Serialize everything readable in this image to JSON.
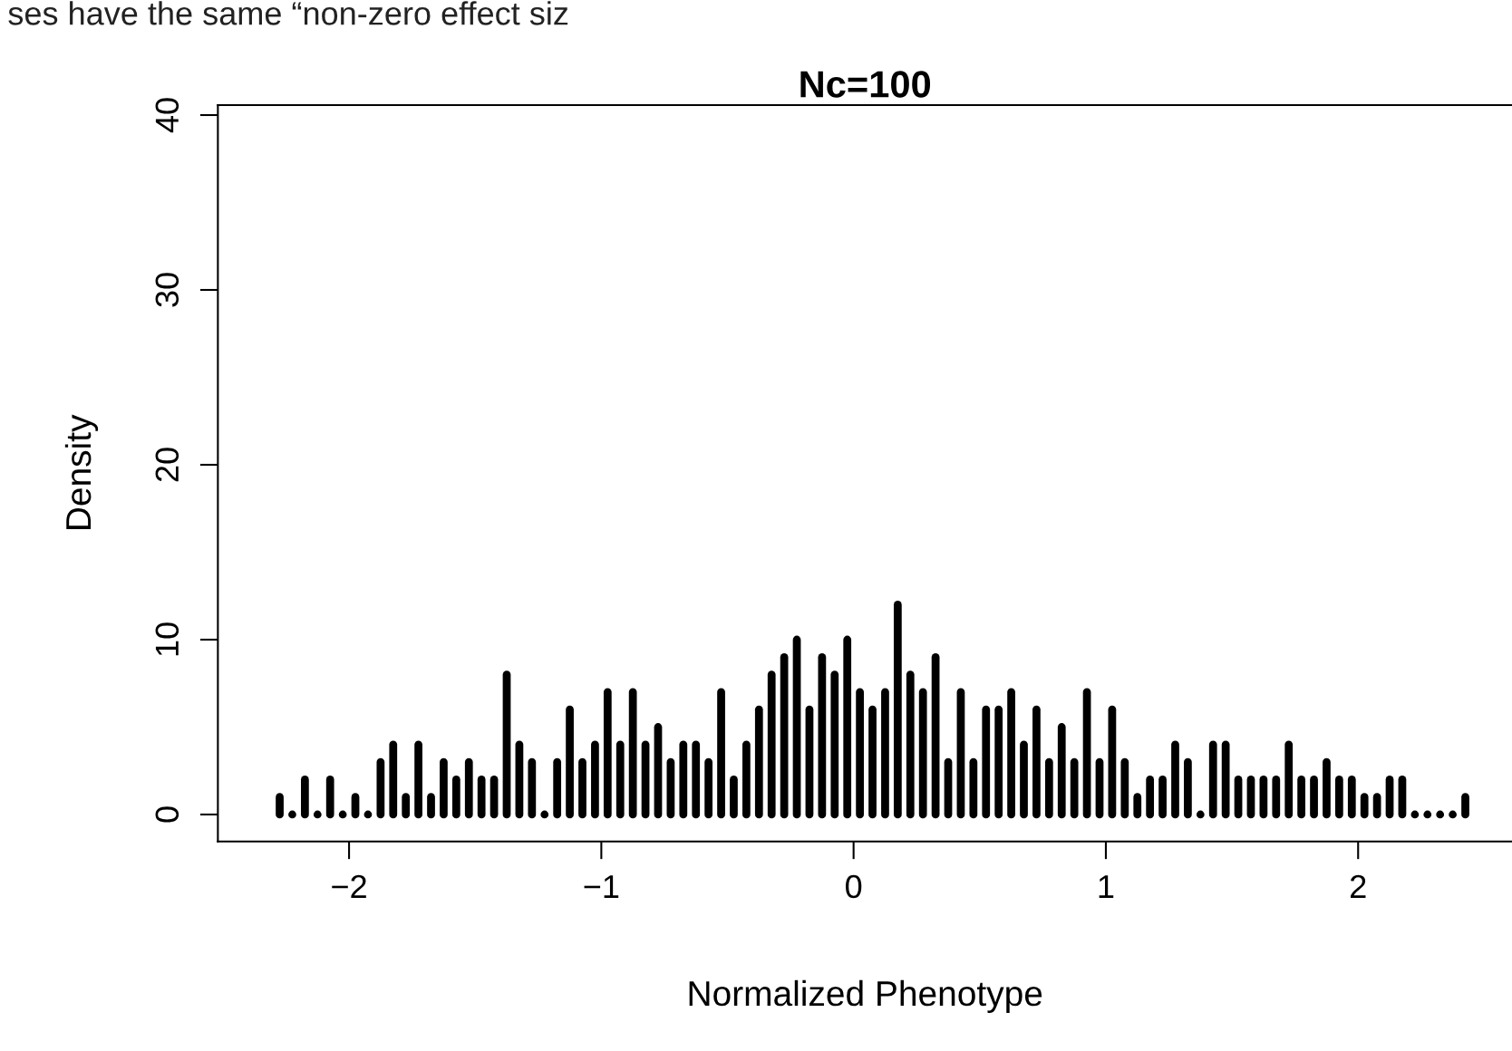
{
  "chart_data": {
    "type": "bar",
    "title": "Nc=100",
    "xlabel": "Normalized Phenotype",
    "ylabel": "Density",
    "annotations": [
      "ses have the same “non-zero effect siz"
    ],
    "x": [
      -2.275,
      -2.225,
      -2.175,
      -2.125,
      -2.075,
      -2.025,
      -1.975,
      -1.925,
      -1.875,
      -1.825,
      -1.775,
      -1.725,
      -1.675,
      -1.625,
      -1.575,
      -1.525,
      -1.475,
      -1.425,
      -1.375,
      -1.325,
      -1.275,
      -1.225,
      -1.175,
      -1.125,
      -1.075,
      -1.025,
      -0.975,
      -0.925,
      -0.875,
      -0.825,
      -0.775,
      -0.725,
      -0.675,
      -0.625,
      -0.575,
      -0.525,
      -0.475,
      -0.425,
      -0.375,
      -0.325,
      -0.275,
      -0.225,
      -0.175,
      -0.125,
      -0.075,
      -0.025,
      0.025,
      0.075,
      0.125,
      0.175,
      0.225,
      0.275,
      0.325,
      0.375,
      0.425,
      0.475,
      0.525,
      0.575,
      0.625,
      0.675,
      0.725,
      0.775,
      0.825,
      0.875,
      0.925,
      0.975,
      1.025,
      1.075,
      1.125,
      1.175,
      1.225,
      1.275,
      1.325,
      1.375,
      1.425,
      1.475,
      1.525,
      1.575,
      1.625,
      1.675,
      1.725,
      1.775,
      1.825,
      1.875,
      1.925,
      1.975,
      2.025,
      2.075,
      2.125,
      2.175,
      2.225,
      2.275,
      2.325,
      2.375,
      2.425
    ],
    "values": [
      1,
      0,
      2,
      0,
      2,
      0,
      1,
      0,
      3,
      4,
      1,
      4,
      1,
      3,
      2,
      3,
      2,
      2,
      8,
      4,
      3,
      0,
      3,
      6,
      3,
      4,
      7,
      4,
      7,
      4,
      5,
      3,
      4,
      4,
      3,
      7,
      2,
      4,
      6,
      8,
      9,
      10,
      6,
      9,
      8,
      10,
      7,
      6,
      7,
      12,
      8,
      7,
      9,
      3,
      7,
      3,
      6,
      6,
      7,
      4,
      6,
      3,
      5,
      3,
      7,
      3,
      6,
      3,
      1,
      2,
      2,
      4,
      3,
      0,
      4,
      4,
      2,
      2,
      2,
      2,
      4,
      2,
      2,
      3,
      2,
      2,
      1,
      1,
      2,
      2,
      0,
      0,
      0,
      0,
      1
    ],
    "color": "#000000",
    "xlim": [
      -2.52,
      2.61
    ],
    "ylim": [
      -1.54,
      40.57
    ],
    "xticks": [
      {
        "value": -2,
        "label": "−2"
      },
      {
        "value": -1,
        "label": "−1"
      },
      0,
      1,
      2
    ],
    "yticks": [
      0,
      10,
      20,
      30,
      40
    ],
    "grid": false,
    "legend": false
  }
}
